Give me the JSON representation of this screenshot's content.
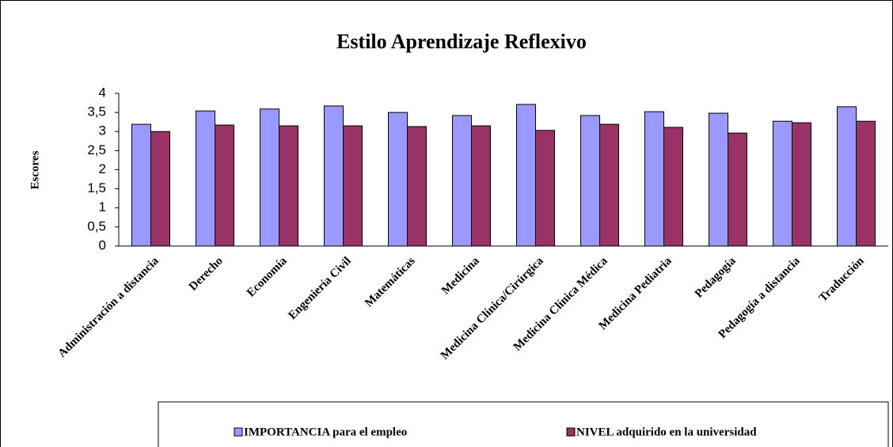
{
  "chart_data": {
    "type": "bar",
    "title": "Estilo Aprendizaje Reflexivo",
    "y_label": "Escores",
    "categories": [
      "Administración a distancia",
      "Derecho",
      "Economía",
      "Engeniería Civil",
      "Matemáticas",
      "Medicina",
      "Medicina Clínica/Cirúrgica",
      "Medicina Clínica Médica",
      "Medicina Pediatria",
      "Pedagogía",
      "Pedagogía a distancia",
      "Traducción"
    ],
    "series": [
      {
        "name": "IMPORTANCIA para el empleo",
        "color": "#9999ff",
        "values": [
          3.19,
          3.54,
          3.59,
          3.67,
          3.5,
          3.42,
          3.71,
          3.42,
          3.52,
          3.48,
          3.27,
          3.65
        ]
      },
      {
        "name": "NIVEL adquirido en la universidad",
        "color": "#993366",
        "values": [
          3.0,
          3.17,
          3.15,
          3.15,
          3.13,
          3.15,
          3.03,
          3.19,
          3.11,
          2.96,
          3.23,
          3.27
        ]
      }
    ],
    "ylim": [
      0,
      4
    ],
    "yticks": [
      0,
      {
        "value": 0.5,
        "label": "0,5"
      },
      1,
      {
        "value": 1.5,
        "label": "1,5"
      },
      2,
      {
        "value": 2.5,
        "label": "2,5"
      },
      3,
      {
        "value": 3.5,
        "label": "3,5"
      },
      4
    ],
    "legend": "bottom"
  }
}
